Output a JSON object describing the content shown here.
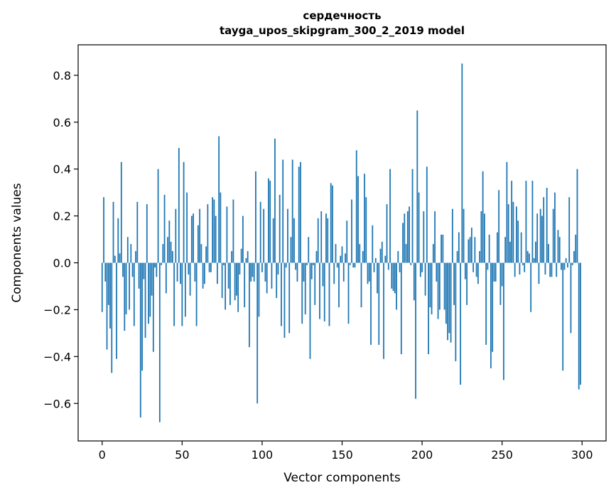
{
  "chart_data": {
    "type": "bar",
    "title": "сердечность",
    "subtitle": "tayga_upos_skipgram_300_2_2019 model",
    "xlabel": "Vector components",
    "ylabel": "Components values",
    "xlim": [
      -15,
      315
    ],
    "ylim": [
      -0.76,
      0.93
    ],
    "xticks": [
      0,
      50,
      100,
      150,
      200,
      250,
      300
    ],
    "xtick_labels": [
      "0",
      "50",
      "100",
      "150",
      "200",
      "250",
      "300"
    ],
    "yticks": [
      -0.6,
      -0.4,
      -0.2,
      0.0,
      0.2,
      0.4,
      0.6,
      0.8
    ],
    "ytick_labels": [
      "−0.6",
      "−0.4",
      "−0.2",
      "0.0",
      "0.2",
      "0.4",
      "0.6",
      "0.8"
    ],
    "grid": false,
    "color": "#1f77b4",
    "values": [
      -0.21,
      0.28,
      -0.08,
      -0.37,
      -0.18,
      -0.28,
      -0.47,
      0.26,
      0.03,
      -0.41,
      0.19,
      0.04,
      0.43,
      -0.06,
      -0.29,
      -0.22,
      0.11,
      -0.2,
      0.08,
      -0.06,
      -0.27,
      0.05,
      0.26,
      -0.11,
      -0.66,
      -0.46,
      -0.07,
      -0.32,
      0.25,
      -0.26,
      -0.23,
      -0.14,
      -0.38,
      -0.02,
      -0.06,
      0.4,
      -0.68,
      -0.01,
      0.08,
      0.29,
      -0.13,
      0.11,
      0.18,
      0.09,
      0.05,
      -0.27,
      0.23,
      -0.08,
      0.49,
      -0.09,
      -0.27,
      0.43,
      -0.23,
      0.3,
      -0.05,
      -0.14,
      0.2,
      0.21,
      -0.08,
      -0.27,
      0.16,
      0.23,
      0.08,
      -0.11,
      -0.09,
      0.07,
      0.25,
      -0.04,
      -0.04,
      0.28,
      0.27,
      0.2,
      -0.09,
      0.54,
      0.3,
      -0.15,
      -0.01,
      -0.2,
      0.24,
      -0.11,
      -0.18,
      0.05,
      0.27,
      -0.16,
      -0.14,
      -0.21,
      -0.05,
      0.06,
      0.2,
      -0.19,
      0.02,
      0.05,
      -0.36,
      -0.08,
      -0.06,
      -0.08,
      0.39,
      -0.6,
      -0.23,
      0.26,
      -0.04,
      0.23,
      -0.08,
      -0.13,
      0.36,
      0.35,
      -0.11,
      0.19,
      0.53,
      -0.15,
      -0.05,
      0.29,
      -0.27,
      0.44,
      -0.32,
      -0.02,
      0.23,
      -0.3,
      0.11,
      0.44,
      0.19,
      -0.03,
      -0.08,
      0.41,
      0.43,
      -0.26,
      -0.08,
      -0.22,
      -0.01,
      0.11,
      -0.41,
      -0.07,
      -0.01,
      -0.18,
      0.05,
      0.19,
      -0.24,
      0.22,
      -0.1,
      -0.25,
      0.21,
      0.19,
      -0.27,
      0.34,
      0.33,
      -0.09,
      0.08,
      -0.02,
      -0.19,
      0.03,
      0.07,
      -0.08,
      0.04,
      0.18,
      -0.26,
      -0.01,
      0.27,
      -0.02,
      -0.02,
      0.48,
      0.37,
      0.08,
      -0.19,
      0.05,
      0.38,
      0.28,
      -0.09,
      -0.08,
      -0.35,
      0.16,
      -0.04,
      0.02,
      -0.13,
      -0.35,
      0.06,
      0.09,
      -0.41,
      0.03,
      0.25,
      -0.03,
      0.4,
      -0.11,
      -0.12,
      -0.13,
      -0.2,
      0.05,
      -0.04,
      -0.39,
      0.17,
      0.21,
      0.08,
      0.22,
      0.24,
      -0.01,
      0.4,
      -0.16,
      -0.58,
      0.65,
      0.3,
      -0.06,
      -0.04,
      0.22,
      -0.14,
      0.41,
      -0.39,
      -0.19,
      -0.22,
      0.08,
      0.22,
      -0.08,
      -0.24,
      -0.2,
      0.12,
      0.12,
      -0.2,
      -0.26,
      -0.33,
      -0.3,
      -0.34,
      0.23,
      -0.18,
      -0.42,
      0.05,
      0.13,
      -0.52,
      0.85,
      0.23,
      -0.07,
      -0.18,
      0.1,
      0.11,
      0.15,
      -0.04,
      0.11,
      -0.06,
      -0.09,
      0.05,
      0.22,
      0.39,
      0.21,
      -0.35,
      -0.03,
      0.12,
      -0.45,
      -0.38,
      -0.08,
      -0.08,
      0.13,
      0.31,
      -0.18,
      -0.1,
      -0.5,
      0.11,
      0.43,
      0.25,
      0.09,
      0.35,
      0.26,
      -0.06,
      0.24,
      0.18,
      -0.05,
      0.13,
      -0.01,
      -0.04,
      0.35,
      0.05,
      0.04,
      -0.21,
      0.35,
      0.02,
      0.09,
      0.21,
      -0.09,
      0.23,
      0.2,
      0.28,
      -0.05,
      0.32,
      0.08,
      -0.06,
      -0.06,
      0.23,
      0.3,
      -0.06,
      0.14,
      0.11,
      -0.03,
      -0.46,
      -0.03,
      0.02,
      -0.02,
      0.28,
      -0.3,
      -0.01,
      0.05,
      0.12,
      0.4,
      -0.54,
      -0.52
    ]
  }
}
